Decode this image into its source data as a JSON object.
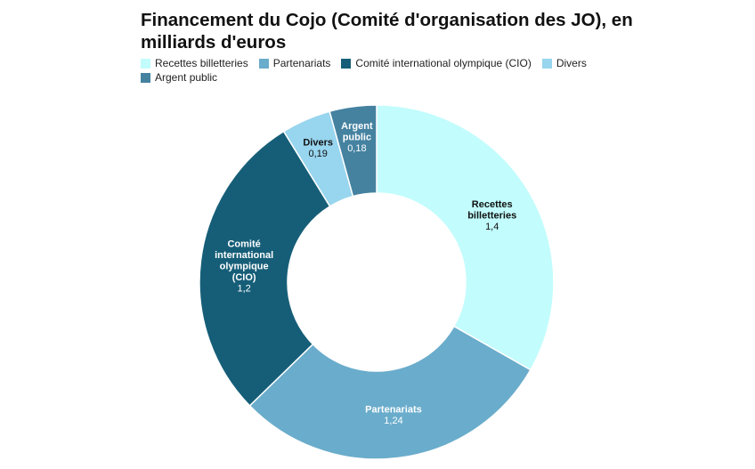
{
  "chart_data": {
    "type": "pie",
    "variant": "donut",
    "title": "Financement du Cojo (Comité d'organisation des JO), en milliards d'euros",
    "legend_position": "top",
    "categories": [
      "Recettes billetteries",
      "Partenariats",
      "Comité international olympique (CIO)",
      "Divers",
      "Argent public"
    ],
    "values": [
      1.4,
      1.24,
      1.2,
      0.19,
      0.18
    ],
    "value_labels": [
      "1,4",
      "1,24",
      "1,2",
      "0,19",
      "0,18"
    ],
    "slice_label_lines": [
      [
        "Recettes",
        "billetteries"
      ],
      [
        "Partenariats"
      ],
      [
        "Comité",
        "international",
        "olympique",
        "(CIO)"
      ],
      [
        "Divers"
      ],
      [
        "Argent",
        "public"
      ]
    ],
    "colors": [
      "#c2fcfc",
      "#6aaccb",
      "#165e78",
      "#98d5ee",
      "#4482a0"
    ],
    "label_colors": [
      "#111111",
      "#ffffff",
      "#ffffff",
      "#111111",
      "#ffffff"
    ]
  }
}
